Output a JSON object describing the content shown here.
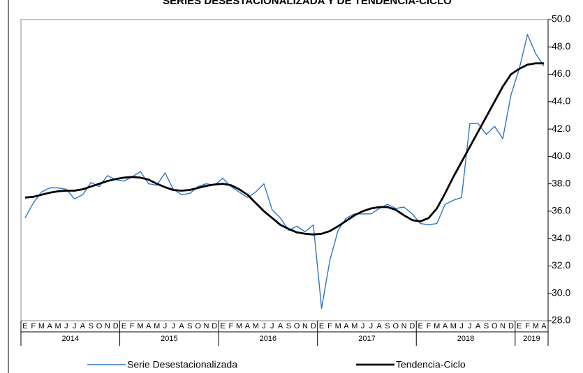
{
  "chart_data": {
    "type": "line",
    "title": "SERIES DESESTACIONALIZADA Y DE TENDENCIA-CICLO",
    "categories": [
      "E",
      "F",
      "M",
      "A",
      "M",
      "J",
      "J",
      "A",
      "S",
      "O",
      "N",
      "D",
      "E",
      "F",
      "M",
      "A",
      "M",
      "J",
      "J",
      "A",
      "S",
      "O",
      "N",
      "D",
      "E",
      "F",
      "M",
      "A",
      "M",
      "J",
      "J",
      "A",
      "S",
      "O",
      "N",
      "D",
      "E",
      "F",
      "M",
      "A",
      "M",
      "J",
      "J",
      "A",
      "S",
      "O",
      "N",
      "D",
      "E",
      "F",
      "M",
      "A",
      "M",
      "J",
      "J",
      "A",
      "S",
      "O",
      "N",
      "D",
      "E",
      "F",
      "M",
      "A"
    ],
    "years": [
      "2014",
      "2015",
      "2016",
      "2017",
      "2018",
      "2019"
    ],
    "series": [
      {
        "name": "Serie Desestacionalizada",
        "color": "#2e75c6",
        "values": [
          35.5,
          36.6,
          37.4,
          37.7,
          37.7,
          37.6,
          36.9,
          37.2,
          38.1,
          37.8,
          38.6,
          38.3,
          38.2,
          38.5,
          38.9,
          38.0,
          37.9,
          38.8,
          37.6,
          37.2,
          37.3,
          37.8,
          38.0,
          37.9,
          38.4,
          37.8,
          37.4,
          37.0,
          37.4,
          38.0,
          36.1,
          35.5,
          34.6,
          34.9,
          34.5,
          35.0,
          28.9,
          32.4,
          34.6,
          35.5,
          35.8,
          35.8,
          35.8,
          36.2,
          36.5,
          36.2,
          36.3,
          35.8,
          35.1,
          35.0,
          35.1,
          36.5,
          36.8,
          37.0,
          42.4,
          42.4,
          41.6,
          42.2,
          41.3,
          44.5,
          46.4,
          48.9,
          47.5,
          46.6
        ]
      },
      {
        "name": "Tendencia-Ciclo",
        "color": "#000000",
        "values": [
          37.0,
          37.05,
          37.2,
          37.35,
          37.45,
          37.5,
          37.5,
          37.6,
          37.8,
          38.0,
          38.2,
          38.35,
          38.45,
          38.5,
          38.45,
          38.3,
          38.0,
          37.75,
          37.55,
          37.5,
          37.55,
          37.7,
          37.85,
          37.95,
          38.0,
          37.9,
          37.6,
          37.2,
          36.6,
          36.0,
          35.5,
          35.0,
          34.7,
          34.45,
          34.35,
          34.3,
          34.35,
          34.55,
          34.9,
          35.3,
          35.7,
          36.0,
          36.2,
          36.3,
          36.3,
          36.1,
          35.7,
          35.35,
          35.25,
          35.5,
          36.2,
          37.3,
          38.5,
          39.6,
          40.7,
          41.8,
          42.9,
          44.0,
          45.1,
          46.0,
          46.4,
          46.7,
          46.8,
          46.8
        ]
      }
    ],
    "ylim": [
      28,
      50
    ],
    "yticks": [
      {
        "value": 28,
        "label": "28.0"
      },
      {
        "value": 30,
        "label": "30.0"
      },
      {
        "value": 32,
        "label": "32.0"
      },
      {
        "value": 34,
        "label": "34.0"
      },
      {
        "value": 36,
        "label": "36.0"
      },
      {
        "value": 38,
        "label": "38.0"
      },
      {
        "value": 40,
        "label": "40.0"
      },
      {
        "value": 42,
        "label": "42.0"
      },
      {
        "value": 44,
        "label": "44.0"
      },
      {
        "value": 46,
        "label": "46.0"
      },
      {
        "value": 48,
        "label": "48.0"
      },
      {
        "value": 50,
        "label": "50.0"
      }
    ]
  }
}
